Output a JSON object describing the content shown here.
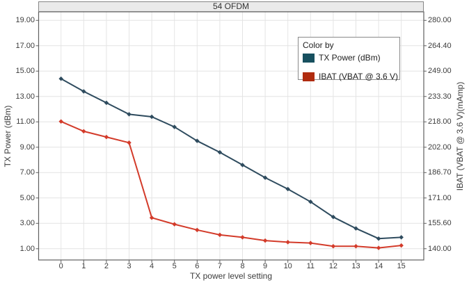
{
  "chart_data": {
    "type": "line",
    "title": "54 OFDM",
    "x_label": "TX power level setting",
    "grid": true,
    "x": [
      0,
      1,
      2,
      3,
      4,
      5,
      6,
      7,
      8,
      9,
      10,
      11,
      12,
      13,
      14,
      15
    ],
    "x_tick_labels": [
      "0",
      "1",
      "2",
      "3",
      "4",
      "5",
      "6",
      "7",
      "8",
      "9",
      "10",
      "11",
      "12",
      "13",
      "14",
      "15"
    ],
    "left_axis": {
      "label": "TX Power (dBm)",
      "min": 1,
      "max": 19,
      "tick_labels": [
        "19.00",
        "17.00",
        "15.00",
        "13.00",
        "11.00",
        "9.00",
        "7.00",
        "5.00",
        "3.00",
        "1.00"
      ]
    },
    "right_axis": {
      "label": "IBAT (VBAT @ 3.6 V)(mAmp)",
      "min": 140,
      "max": 280,
      "tick_labels": [
        "280.00",
        "264.40",
        "249.00",
        "233.30",
        "218.00",
        "202.00",
        "186.70",
        "171.00",
        "155.60",
        "140.00"
      ]
    },
    "legend": {
      "position": "top-right",
      "title": "Color by",
      "items": [
        {
          "label": "TX Power (dBm)",
          "color": "#17505f"
        },
        {
          "label": "IBAT (VBAT @ 3.6 V)",
          "color": "#b02c0f"
        }
      ]
    },
    "series": [
      {
        "name": "TX Power (dBm)",
        "axis": "left",
        "color": "#2e4b5e",
        "values": [
          14.4,
          13.4,
          12.5,
          11.6,
          11.4,
          10.6,
          9.5,
          8.6,
          7.6,
          6.6,
          5.7,
          4.7,
          3.5,
          2.6,
          1.8,
          1.9
        ]
      },
      {
        "name": "IBAT (VBAT @ 3.6 V)",
        "axis": "right",
        "color": "#d33b2a",
        "values": [
          218,
          212,
          208.5,
          205,
          159,
          155,
          151.5,
          148.5,
          147,
          145,
          144,
          143.5,
          141.5,
          141.5,
          140.5,
          142
        ]
      }
    ]
  }
}
